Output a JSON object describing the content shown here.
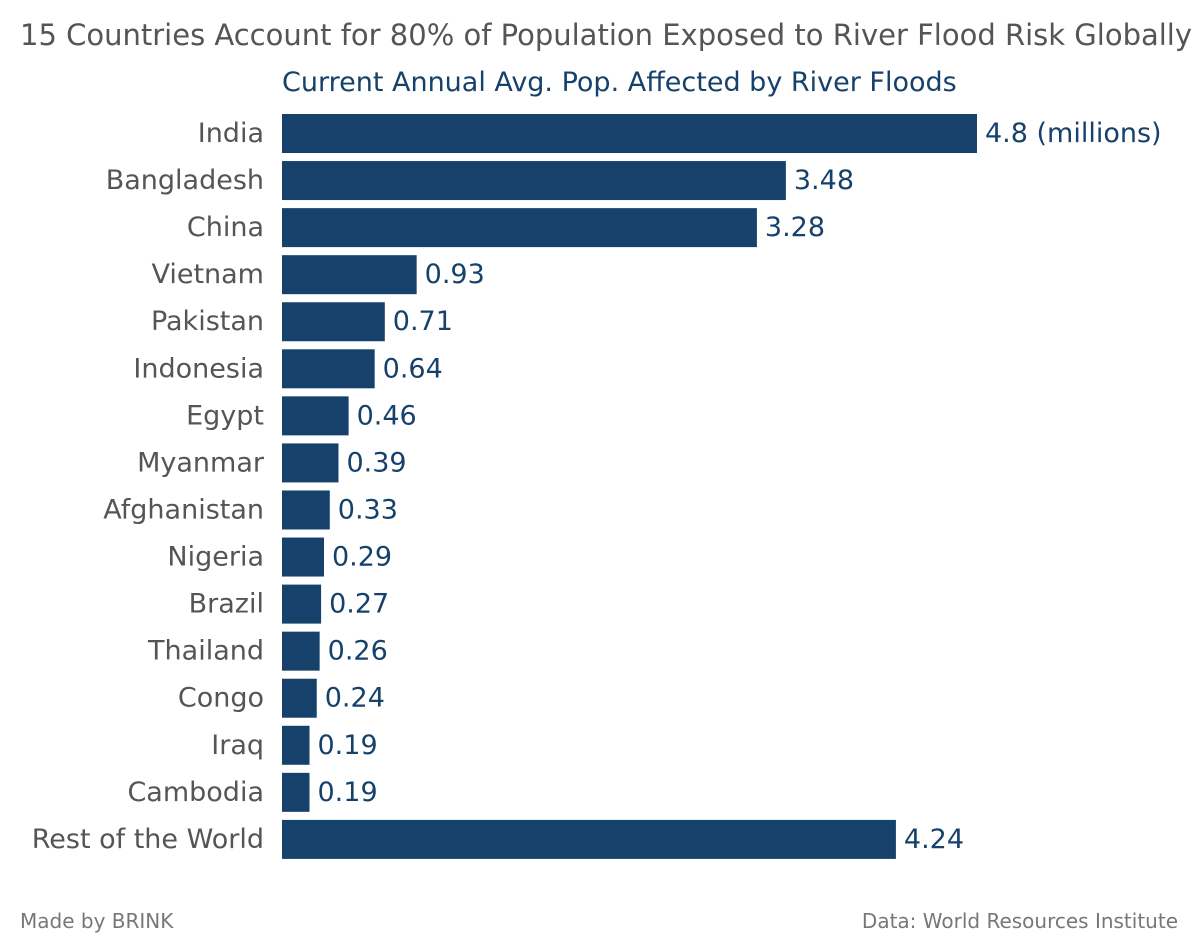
{
  "chart_data": {
    "type": "bar",
    "orientation": "horizontal",
    "title": "15 Countries Account for 80% of Population Exposed to River Flood Risk Globally",
    "subtitle": "Current Annual Avg. Pop. Affected by River Floods",
    "categories": [
      "India",
      "Bangladesh",
      "China",
      "Vietnam",
      "Pakistan",
      "Indonesia",
      "Egypt",
      "Myanmar",
      "Afghanistan",
      "Nigeria",
      "Brazil",
      "Thailand",
      "Congo",
      "Iraq",
      "Cambodia",
      "Rest of the World"
    ],
    "values": [
      4.8,
      3.48,
      3.28,
      0.93,
      0.71,
      0.64,
      0.46,
      0.39,
      0.33,
      0.29,
      0.27,
      0.26,
      0.24,
      0.19,
      0.19,
      4.24
    ],
    "value_labels": [
      "4.8 (millions)",
      "3.48",
      "3.28",
      "0.93",
      "0.71",
      "0.64",
      "0.46",
      "0.39",
      "0.33",
      "0.29",
      "0.27",
      "0.26",
      "0.24",
      "0.19",
      "0.19",
      "4.24"
    ],
    "xlim": [
      0,
      4.8
    ],
    "unit": "millions",
    "xlabel": "",
    "ylabel": "",
    "grid": false,
    "legend": "none",
    "colors": {
      "bar": "#16416a",
      "value_label": "#16416a",
      "category_label": "#555555",
      "title": "#555555"
    }
  },
  "footer": {
    "credit": "Made by BRINK",
    "source": "Data: World Resources Institute"
  }
}
